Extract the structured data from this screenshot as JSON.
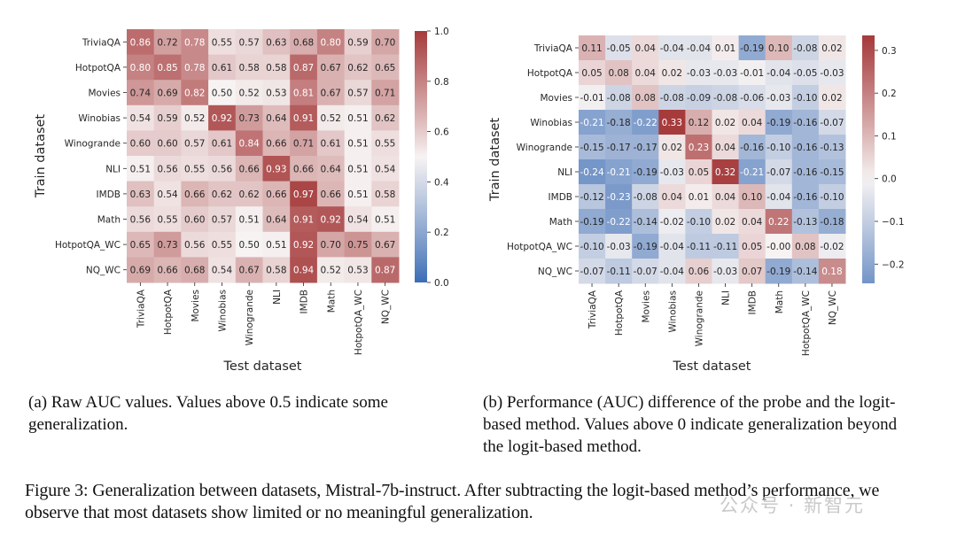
{
  "chart_data": [
    {
      "type": "heatmap",
      "id": "raw-auc",
      "title": "",
      "xlabel": "Test dataset",
      "ylabel": "Train dataset",
      "rows": [
        "TriviaQA",
        "HotpotQA",
        "Movies",
        "Winobias",
        "Winogrande",
        "NLI",
        "IMDB",
        "Math",
        "HotpotQA_WC",
        "NQ_WC"
      ],
      "columns": [
        "TriviaQA",
        "HotpotQA",
        "Movies",
        "Winobias",
        "Winogrande",
        "NLI",
        "IMDB",
        "Math",
        "HotpotQA_WC",
        "NQ_WC"
      ],
      "values": [
        [
          0.86,
          0.72,
          0.78,
          0.55,
          0.57,
          0.63,
          0.68,
          0.8,
          0.59,
          0.7
        ],
        [
          0.8,
          0.85,
          0.78,
          0.61,
          0.58,
          0.58,
          0.87,
          0.67,
          0.62,
          0.65
        ],
        [
          0.74,
          0.69,
          0.82,
          0.5,
          0.52,
          0.53,
          0.81,
          0.67,
          0.57,
          0.71
        ],
        [
          0.54,
          0.59,
          0.52,
          0.92,
          0.73,
          0.64,
          0.91,
          0.52,
          0.51,
          0.62
        ],
        [
          0.6,
          0.6,
          0.57,
          0.61,
          0.84,
          0.66,
          0.71,
          0.61,
          0.51,
          0.55
        ],
        [
          0.51,
          0.56,
          0.55,
          0.56,
          0.66,
          0.93,
          0.66,
          0.64,
          0.51,
          0.54
        ],
        [
          0.63,
          0.54,
          0.66,
          0.62,
          0.62,
          0.66,
          0.97,
          0.66,
          0.51,
          0.58
        ],
        [
          0.56,
          0.55,
          0.6,
          0.57,
          0.51,
          0.64,
          0.91,
          0.92,
          0.54,
          0.51
        ],
        [
          0.65,
          0.73,
          0.56,
          0.55,
          0.5,
          0.51,
          0.92,
          0.7,
          0.75,
          0.67
        ],
        [
          0.69,
          0.66,
          0.68,
          0.54,
          0.67,
          0.58,
          0.94,
          0.52,
          0.53,
          0.87
        ]
      ],
      "value_labels": [
        [
          "0.86",
          "0.72",
          "0.78",
          "0.55",
          "0.57",
          "0.63",
          "0.68",
          "0.80",
          "0.59",
          "0.70"
        ],
        [
          "0.80",
          "0.85",
          "0.78",
          "0.61",
          "0.58",
          "0.58",
          "0.87",
          "0.67",
          "0.62",
          "0.65"
        ],
        [
          "0.74",
          "0.69",
          "0.82",
          "0.50",
          "0.52",
          "0.53",
          "0.81",
          "0.67",
          "0.57",
          "0.71"
        ],
        [
          "0.54",
          "0.59",
          "0.52",
          "0.92",
          "0.73",
          "0.64",
          "0.91",
          "0.52",
          "0.51",
          "0.62"
        ],
        [
          "0.60",
          "0.60",
          "0.57",
          "0.61",
          "0.84",
          "0.66",
          "0.71",
          "0.61",
          "0.51",
          "0.55"
        ],
        [
          "0.51",
          "0.56",
          "0.55",
          "0.56",
          "0.66",
          "0.93",
          "0.66",
          "0.64",
          "0.51",
          "0.54"
        ],
        [
          "0.63",
          "0.54",
          "0.66",
          "0.62",
          "0.62",
          "0.66",
          "0.97",
          "0.66",
          "0.51",
          "0.58"
        ],
        [
          "0.56",
          "0.55",
          "0.60",
          "0.57",
          "0.51",
          "0.64",
          "0.91",
          "0.92",
          "0.54",
          "0.51"
        ],
        [
          "0.65",
          "0.73",
          "0.56",
          "0.55",
          "0.50",
          "0.51",
          "0.92",
          "0.70",
          "0.75",
          "0.67"
        ],
        [
          "0.69",
          "0.66",
          "0.68",
          "0.54",
          "0.67",
          "0.58",
          "0.94",
          "0.52",
          "0.53",
          "0.87"
        ]
      ],
      "colormap": "vlag",
      "vmin": 0.0,
      "vmax": 1.0,
      "vcenter": 0.5,
      "colorbar_ticks": [
        0.0,
        0.2,
        0.4,
        0.6,
        0.8,
        1.0
      ],
      "colorbar_tick_labels": [
        "0.0",
        "0.2",
        "0.4",
        "0.6",
        "0.8",
        "1.0"
      ],
      "colorbar_placement": "right"
    },
    {
      "type": "heatmap",
      "id": "auc-difference",
      "title": "",
      "xlabel": "Test dataset",
      "ylabel": "Train dataset",
      "rows": [
        "TriviaQA",
        "HotpotQA",
        "Movies",
        "Winobias",
        "Winogrande",
        "NLI",
        "IMDB",
        "Math",
        "HotpotQA_WC",
        "NQ_WC"
      ],
      "columns": [
        "TriviaQA",
        "HotpotQA",
        "Movies",
        "Winobias",
        "Winogrande",
        "NLI",
        "IMDB",
        "Math",
        "HotpotQA_WC",
        "NQ_WC"
      ],
      "values": [
        [
          0.11,
          -0.05,
          0.04,
          -0.04,
          -0.04,
          0.01,
          -0.19,
          0.1,
          -0.08,
          0.02
        ],
        [
          0.05,
          0.08,
          0.04,
          0.02,
          -0.03,
          -0.03,
          -0.01,
          -0.04,
          -0.05,
          -0.03
        ],
        [
          -0.01,
          -0.08,
          0.08,
          -0.08,
          -0.09,
          -0.08,
          -0.06,
          -0.03,
          -0.1,
          0.02
        ],
        [
          -0.21,
          -0.18,
          -0.22,
          0.33,
          0.12,
          0.02,
          0.04,
          -0.19,
          -0.16,
          -0.07
        ],
        [
          -0.15,
          -0.17,
          -0.17,
          0.02,
          0.23,
          0.04,
          -0.16,
          -0.1,
          -0.16,
          -0.13
        ],
        [
          -0.24,
          -0.21,
          -0.19,
          -0.03,
          0.05,
          0.32,
          -0.21,
          -0.07,
          -0.16,
          -0.15
        ],
        [
          -0.12,
          -0.23,
          -0.08,
          0.04,
          0.01,
          0.04,
          0.1,
          -0.04,
          -0.16,
          -0.1
        ],
        [
          -0.19,
          -0.22,
          -0.14,
          -0.02,
          -0.1,
          0.02,
          0.04,
          0.22,
          -0.13,
          -0.18
        ],
        [
          -0.1,
          -0.03,
          -0.19,
          -0.04,
          -0.11,
          -0.11,
          0.05,
          -0.0,
          0.08,
          -0.02
        ],
        [
          -0.07,
          -0.11,
          -0.07,
          -0.04,
          0.06,
          -0.03,
          0.07,
          -0.19,
          -0.14,
          0.18
        ]
      ],
      "value_labels": [
        [
          "0.11",
          "-0.05",
          "0.04",
          "-0.04",
          "-0.04",
          "0.01",
          "-0.19",
          "0.10",
          "-0.08",
          "0.02"
        ],
        [
          "0.05",
          "0.08",
          "0.04",
          "0.02",
          "-0.03",
          "-0.03",
          "-0.01",
          "-0.04",
          "-0.05",
          "-0.03"
        ],
        [
          "-0.01",
          "-0.08",
          "0.08",
          "-0.08",
          "-0.09",
          "-0.08",
          "-0.06",
          "-0.03",
          "-0.10",
          "0.02"
        ],
        [
          "-0.21",
          "-0.18",
          "-0.22",
          "0.33",
          "0.12",
          "0.02",
          "0.04",
          "-0.19",
          "-0.16",
          "-0.07"
        ],
        [
          "-0.15",
          "-0.17",
          "-0.17",
          "0.02",
          "0.23",
          "0.04",
          "-0.16",
          "-0.10",
          "-0.16",
          "-0.13"
        ],
        [
          "-0.24",
          "-0.21",
          "-0.19",
          "-0.03",
          "0.05",
          "0.32",
          "-0.21",
          "-0.07",
          "-0.16",
          "-0.15"
        ],
        [
          "-0.12",
          "-0.23",
          "-0.08",
          "0.04",
          "0.01",
          "0.04",
          "0.10",
          "-0.04",
          "-0.16",
          "-0.10"
        ],
        [
          "-0.19",
          "-0.22",
          "-0.14",
          "-0.02",
          "-0.10",
          "0.02",
          "0.04",
          "0.22",
          "-0.13",
          "-0.18"
        ],
        [
          "-0.10",
          "-0.03",
          "-0.19",
          "-0.04",
          "-0.11",
          "-0.11",
          "0.05",
          "-0.00",
          "0.08",
          "-0.02"
        ],
        [
          "-0.07",
          "-0.11",
          "-0.07",
          "-0.04",
          "0.06",
          "-0.03",
          "0.07",
          "-0.19",
          "-0.14",
          "0.18"
        ]
      ],
      "colormap": "vlag",
      "vmin": -0.24,
      "vmax": 0.33,
      "vcenter": 0.0,
      "colorbar_ticks": [
        -0.2,
        -0.1,
        0.0,
        0.1,
        0.2,
        0.3
      ],
      "colorbar_tick_labels": [
        "−0.2",
        "−0.1",
        "0.0",
        "0.1",
        "0.2",
        "0.3"
      ],
      "colorbar_placement": "right"
    }
  ],
  "colors": {
    "low": "#3a6cb5",
    "mid": "#f7f3f3",
    "high": "#a63b3c",
    "text_dark": "#262626",
    "text_light": "#ffffff"
  },
  "captions": {
    "a": "(a) Raw AUC values. Values above 0.5 indicate some generalization.",
    "b": "(b) Performance (AUC) difference of the probe and the logit-based method. Values above 0 indicate generalization beyond the logit-based method.",
    "figure": "Figure 3: Generalization between datasets, Mistral-7b-instruct. After subtracting the logit-based method’s performance, we observe that most datasets show limited or no meaningful generalization."
  },
  "watermark": "公众号 · 新智元"
}
